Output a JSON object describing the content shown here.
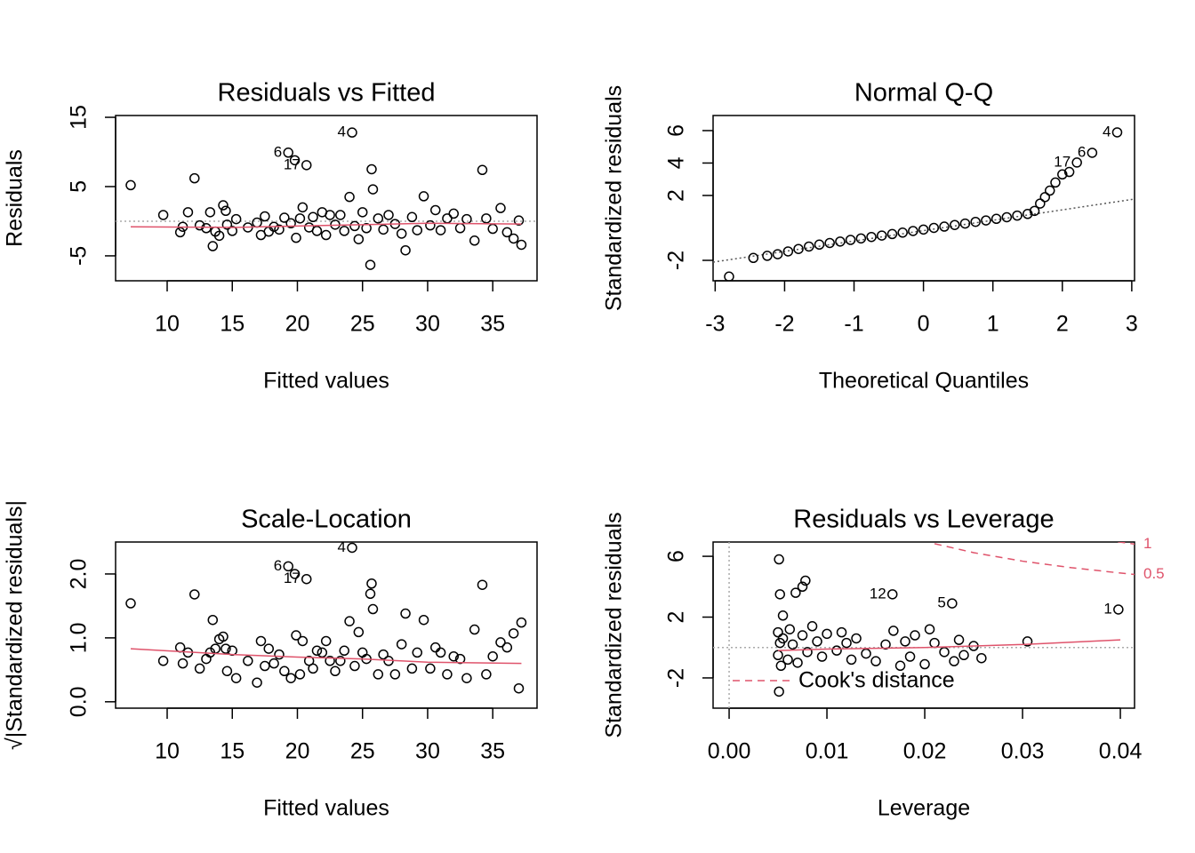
{
  "chart_data": [
    {
      "type": "scatter",
      "title": "Residuals vs Fitted",
      "xlabel": "Fitted values",
      "ylabel": "Residuals",
      "xlim": [
        6.04,
        38.4
      ],
      "ylim": [
        -8.6,
        15.26
      ],
      "xticks": [
        10,
        15,
        20,
        25,
        30,
        35
      ],
      "yticks": [
        -5,
        5,
        15
      ],
      "color": "#000000",
      "smooth_color": "#df536b",
      "hline": 0,
      "x": [
        7.2,
        9.7,
        11.0,
        11.2,
        11.6,
        12.1,
        12.5,
        13.0,
        13.3,
        13.5,
        13.7,
        14.0,
        14.3,
        14.5,
        14.6,
        15.0,
        15.3,
        16.2,
        16.9,
        17.2,
        17.5,
        17.8,
        18.2,
        18.6,
        19.0,
        19.3,
        19.5,
        19.8,
        19.9,
        20.2,
        20.4,
        20.7,
        20.9,
        21.2,
        21.5,
        21.9,
        22.2,
        22.5,
        22.9,
        23.3,
        23.6,
        24.0,
        24.2,
        24.4,
        24.7,
        25.0,
        25.3,
        25.6,
        25.7,
        25.8,
        26.2,
        26.6,
        27.0,
        27.5,
        28.0,
        28.3,
        28.8,
        29.2,
        29.7,
        30.2,
        30.6,
        31.0,
        31.5,
        32.0,
        32.5,
        33.0,
        33.6,
        34.2,
        34.5,
        35.0,
        35.6,
        36.1,
        36.6,
        37.0,
        37.2
      ],
      "values": [
        5.2,
        0.9,
        -1.6,
        -0.8,
        1.3,
        6.2,
        -0.6,
        -1.0,
        1.3,
        -3.6,
        -1.5,
        -2.1,
        2.3,
        1.5,
        -0.5,
        -1.4,
        0.3,
        -0.9,
        -0.2,
        -2.0,
        0.7,
        -1.5,
        -0.8,
        -1.2,
        0.5,
        9.9,
        -0.3,
        8.8,
        -2.4,
        0.4,
        2.0,
        8.1,
        -0.9,
        0.6,
        -1.4,
        1.3,
        -2.0,
        0.9,
        -0.5,
        0.9,
        -1.4,
        3.5,
        12.8,
        -0.7,
        -2.6,
        1.3,
        -1.0,
        -6.3,
        7.5,
        4.6,
        0.4,
        -1.2,
        0.9,
        -0.4,
        -1.8,
        -4.2,
        0.6,
        -1.3,
        3.6,
        -0.6,
        1.6,
        -1.3,
        0.4,
        1.1,
        -1.0,
        0.3,
        -2.8,
        7.4,
        0.4,
        -1.1,
        1.9,
        -1.6,
        -2.5,
        0.1,
        -3.4
      ],
      "smooth": {
        "x": [
          7.2,
          15,
          20,
          25,
          30,
          37.2
        ],
        "values": [
          -0.8,
          -0.9,
          -0.7,
          -0.5,
          -0.3,
          -0.4
        ]
      },
      "point_labels": [
        {
          "text": "4",
          "x": 24.2,
          "y": 12.8
        },
        {
          "text": "6",
          "x": 19.3,
          "y": 9.9
        },
        {
          "text": "17",
          "x": 20.7,
          "y": 8.1
        }
      ]
    },
    {
      "type": "scatter",
      "title": "Normal Q-Q",
      "xlabel": "Theoretical Quantiles",
      "ylabel": "Standardized residuals",
      "xlim": [
        -3.03,
        3.04
      ],
      "ylim": [
        -3.26,
        6.93
      ],
      "xticks": [
        -3,
        -2,
        -1,
        0,
        1,
        2,
        3
      ],
      "yticks": [
        -2,
        2,
        4,
        6
      ],
      "color": "#000000",
      "ref_color": "#555555",
      "x": [
        -2.8,
        -2.45,
        -2.25,
        -2.1,
        -1.95,
        -1.8,
        -1.65,
        -1.5,
        -1.35,
        -1.2,
        -1.05,
        -0.9,
        -0.75,
        -0.6,
        -0.45,
        -0.3,
        -0.15,
        0,
        0.15,
        0.3,
        0.45,
        0.6,
        0.75,
        0.9,
        1.05,
        1.2,
        1.35,
        1.5,
        1.6,
        1.68,
        1.75,
        1.82,
        1.9,
        2.0,
        2.1,
        2.21,
        2.43,
        2.79
      ],
      "values": [
        -3.0,
        -1.85,
        -1.72,
        -1.62,
        -1.45,
        -1.3,
        -1.15,
        -1.03,
        -0.93,
        -0.84,
        -0.74,
        -0.65,
        -0.56,
        -0.47,
        -0.38,
        -0.29,
        -0.19,
        -0.1,
        0.0,
        0.08,
        0.18,
        0.27,
        0.37,
        0.46,
        0.56,
        0.66,
        0.76,
        0.86,
        1.05,
        1.5,
        1.9,
        2.3,
        2.8,
        3.3,
        3.45,
        4.03,
        4.63,
        5.89
      ],
      "ref_line": {
        "x": [
          -3.03,
          3.04
        ],
        "values": [
          -2.11,
          1.78
        ]
      },
      "point_labels": [
        {
          "text": "4",
          "x": 2.79,
          "y": 5.89
        },
        {
          "text": "6",
          "x": 2.43,
          "y": 4.63
        },
        {
          "text": "17",
          "x": 2.21,
          "y": 4.03
        }
      ]
    },
    {
      "type": "scatter",
      "title": "Scale-Location",
      "xlabel": "Fitted values",
      "ylabel": "√|Standardized residuals|",
      "xlim": [
        6.04,
        38.4
      ],
      "ylim": [
        -0.1,
        2.5
      ],
      "xticks": [
        10,
        15,
        20,
        25,
        30,
        35
      ],
      "yticks": [
        {
          "value": 0,
          "label": "0.0"
        },
        {
          "value": 1,
          "label": "1.0"
        },
        {
          "value": 2,
          "label": "2.0"
        }
      ],
      "color": "#000000",
      "smooth_color": "#df536b",
      "x": [
        7.2,
        9.7,
        11.0,
        11.2,
        11.6,
        12.1,
        12.5,
        13.0,
        13.3,
        13.5,
        13.7,
        14.0,
        14.3,
        14.5,
        14.6,
        15.0,
        15.3,
        16.2,
        16.9,
        17.2,
        17.5,
        17.8,
        18.2,
        18.6,
        19.0,
        19.3,
        19.5,
        19.8,
        19.9,
        20.2,
        20.4,
        20.7,
        20.9,
        21.2,
        21.5,
        21.9,
        22.2,
        22.5,
        22.9,
        23.3,
        23.6,
        24.0,
        24.2,
        24.4,
        24.7,
        25.0,
        25.3,
        25.6,
        25.7,
        25.8,
        26.2,
        26.6,
        27.0,
        27.5,
        28.0,
        28.3,
        28.8,
        29.2,
        29.7,
        30.2,
        30.6,
        31.0,
        31.5,
        32.0,
        32.5,
        33.0,
        33.6,
        34.2,
        34.5,
        35.0,
        35.6,
        36.1,
        36.6,
        37.0,
        37.2
      ],
      "values": [
        1.54,
        0.64,
        0.85,
        0.6,
        0.77,
        1.68,
        0.52,
        0.67,
        0.77,
        1.28,
        0.83,
        0.98,
        1.02,
        0.83,
        0.48,
        0.8,
        0.37,
        0.64,
        0.3,
        0.95,
        0.56,
        0.83,
        0.6,
        0.74,
        0.48,
        2.12,
        0.37,
        2.0,
        1.04,
        0.43,
        0.95,
        1.92,
        0.64,
        0.52,
        0.8,
        0.77,
        0.95,
        0.64,
        0.48,
        0.64,
        0.8,
        1.26,
        2.41,
        0.56,
        1.09,
        0.77,
        0.67,
        1.69,
        1.85,
        1.45,
        0.43,
        0.74,
        0.64,
        0.43,
        0.9,
        1.38,
        0.52,
        0.77,
        1.28,
        0.52,
        0.85,
        0.77,
        0.43,
        0.71,
        0.67,
        0.37,
        1.13,
        1.83,
        0.43,
        0.71,
        0.93,
        0.85,
        1.07,
        0.21,
        1.24
      ],
      "smooth": {
        "x": [
          7.2,
          15,
          20,
          25,
          30,
          37.2
        ],
        "values": [
          0.83,
          0.74,
          0.7,
          0.67,
          0.62,
          0.6
        ]
      },
      "point_labels": [
        {
          "text": "4",
          "x": 24.2,
          "y": 2.41
        },
        {
          "text": "6",
          "x": 19.3,
          "y": 2.12
        },
        {
          "text": "17",
          "x": 20.7,
          "y": 1.92
        }
      ]
    },
    {
      "type": "scatter",
      "title": "Residuals vs Leverage",
      "xlabel": "Leverage",
      "ylabel": "Standardized residuals",
      "xlim": [
        -0.00164,
        0.04145
      ],
      "ylim": [
        -3.99,
        6.94
      ],
      "xticks": [
        {
          "value": 0,
          "label": "0.00"
        },
        {
          "value": 0.01,
          "label": "0.01"
        },
        {
          "value": 0.02,
          "label": "0.02"
        },
        {
          "value": 0.03,
          "label": "0.03"
        },
        {
          "value": 0.04,
          "label": "0.04"
        }
      ],
      "yticks": [
        -2,
        2,
        6
      ],
      "color": "#000000",
      "smooth_color": "#df536b",
      "hline": 0,
      "vline": 0,
      "x": [
        0.0051,
        0.0052,
        0.0055,
        0.0068,
        0.0075,
        0.0078,
        0.0167,
        0.0228,
        0.0398,
        0.0305,
        0.0051,
        0.005,
        0.005,
        0.0052,
        0.0053,
        0.0055,
        0.006,
        0.0062,
        0.0065,
        0.007,
        0.0075,
        0.008,
        0.0085,
        0.009,
        0.0095,
        0.01,
        0.011,
        0.0115,
        0.012,
        0.0125,
        0.013,
        0.014,
        0.015,
        0.016,
        0.0168,
        0.0175,
        0.018,
        0.0185,
        0.019,
        0.02,
        0.0205,
        0.021,
        0.022,
        0.023,
        0.0235,
        0.024,
        0.025,
        0.0258
      ],
      "values": [
        5.8,
        3.5,
        2.1,
        3.6,
        4.0,
        4.4,
        3.5,
        2.9,
        2.5,
        0.4,
        -2.9,
        1.0,
        -0.5,
        0.3,
        -1.2,
        0.6,
        -0.8,
        1.2,
        0.2,
        -1.0,
        0.8,
        -0.3,
        1.4,
        0.4,
        -0.6,
        0.9,
        -0.2,
        1.0,
        0.3,
        -0.8,
        0.6,
        -0.4,
        -0.9,
        0.2,
        1.1,
        -1.2,
        0.4,
        -0.6,
        0.8,
        -1.1,
        1.2,
        0.3,
        -0.3,
        -0.9,
        0.5,
        -0.5,
        0.1,
        -0.7
      ],
      "smooth": {
        "x": [
          0.005,
          0.01,
          0.02,
          0.03,
          0.04
        ],
        "values": [
          -0.2,
          -0.1,
          0.0,
          0.2,
          0.5
        ]
      },
      "point_labels": [
        {
          "text": "12",
          "x": 0.0167,
          "y": 3.5
        },
        {
          "text": "5",
          "x": 0.0228,
          "y": 2.9
        },
        {
          "text": "1",
          "x": 0.0398,
          "y": 2.5
        }
      ],
      "cook_curves": [
        {
          "label": 0.5,
          "x": [
            0.021,
            0.025,
            0.03,
            0.035,
            0.04,
            0.0415
          ],
          "values": [
            6.83,
            6.24,
            5.68,
            5.25,
            4.9,
            4.8
          ]
        },
        {
          "label": 1,
          "x": [
            0.0385,
            0.04,
            0.0415
          ],
          "values": [
            7.06,
            6.93,
            6.8
          ]
        }
      ],
      "cook_legend": "Cook's distance"
    }
  ]
}
